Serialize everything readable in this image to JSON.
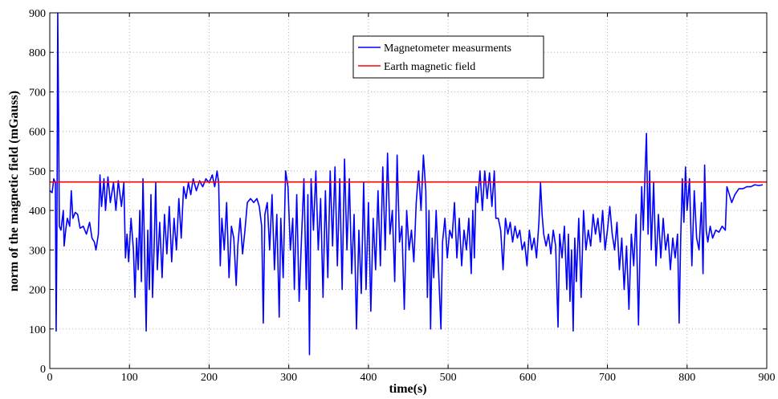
{
  "chart_data": {
    "type": "line",
    "xlabel": "time(s)",
    "ylabel": "norm of the magnetic field (mGauss)",
    "xlim": [
      0,
      900
    ],
    "xticks": [
      0,
      100,
      200,
      300,
      400,
      500,
      600,
      700,
      800,
      900
    ],
    "ylim": [
      0,
      900
    ],
    "yticks": [
      0,
      100,
      200,
      300,
      400,
      500,
      600,
      700,
      800,
      900
    ],
    "grid": true,
    "legend": "upper center",
    "series": [
      {
        "name": "Magnetometer measurments",
        "color": "#0000ff",
        "x": [
          0,
          3,
          5,
          7,
          8,
          9,
          10,
          11,
          12,
          14,
          17,
          18,
          20,
          22,
          25,
          27,
          29,
          32,
          35,
          38,
          42,
          46,
          50,
          53,
          56,
          58,
          61,
          63,
          65,
          68,
          70,
          73,
          76,
          80,
          83,
          86,
          90,
          93,
          95,
          97,
          99,
          102,
          105,
          107,
          109,
          111,
          113,
          115,
          117,
          119,
          121,
          123,
          125,
          127,
          129,
          131,
          133,
          135,
          138,
          141,
          144,
          147,
          150,
          153,
          156,
          159,
          162,
          165,
          168,
          171,
          174,
          177,
          180,
          184,
          188,
          192,
          196,
          200,
          204,
          207,
          210,
          212,
          214,
          216,
          219,
          222,
          225,
          228,
          231,
          234,
          236,
          239,
          242,
          245,
          248,
          252,
          256,
          260,
          263,
          266,
          268,
          270,
          273,
          276,
          279,
          282,
          285,
          288,
          290,
          293,
          296,
          299,
          302,
          305,
          307,
          310,
          313,
          316,
          319,
          322,
          324,
          326,
          328,
          331,
          334,
          337,
          340,
          343,
          346,
          349,
          352,
          355,
          358,
          361,
          364,
          367,
          370,
          373,
          376,
          379,
          382,
          385,
          388,
          391,
          394,
          397,
          400,
          403,
          406,
          409,
          412,
          415,
          418,
          421,
          424,
          427,
          430,
          433,
          436,
          439,
          442,
          445,
          448,
          451,
          454,
          457,
          460,
          463,
          466,
          469,
          472,
          474,
          476,
          478,
          480,
          482,
          485,
          488,
          491,
          493,
          496,
          499,
          502,
          505,
          508,
          511,
          514,
          517,
          520,
          523,
          526,
          529,
          531,
          533,
          535,
          537,
          540,
          543,
          546,
          549,
          552,
          555,
          558,
          560,
          563,
          566,
          569,
          572,
          575,
          578,
          581,
          584,
          587,
          590,
          593,
          596,
          599,
          602,
          605,
          608,
          611,
          614,
          616,
          618,
          620,
          623,
          626,
          629,
          632,
          635,
          638,
          640,
          643,
          646,
          649,
          651,
          653,
          655,
          657,
          659,
          661,
          664,
          667,
          670,
          673,
          676,
          679,
          682,
          685,
          688,
          691,
          694,
          697,
          700,
          703,
          706,
          709,
          712,
          715,
          718,
          721,
          724,
          727,
          730,
          733,
          736,
          739,
          741,
          743,
          745,
          747,
          749,
          751,
          753,
          755,
          758,
          761,
          764,
          767,
          770,
          773,
          776,
          779,
          782,
          785,
          788,
          790,
          792,
          794,
          796,
          798,
          800,
          803,
          806,
          809,
          812,
          815,
          818,
          820,
          822,
          824,
          826,
          829,
          832,
          836,
          840,
          844,
          848,
          850,
          853,
          856,
          860,
          865,
          870,
          875,
          880,
          885,
          890,
          895
        ],
        "values": [
          450,
          445,
          480,
          470,
          95,
          350,
          900,
          650,
          360,
          350,
          400,
          310,
          350,
          380,
          360,
          450,
          380,
          395,
          390,
          355,
          360,
          340,
          370,
          330,
          320,
          300,
          340,
          490,
          410,
          480,
          400,
          485,
          420,
          470,
          400,
          475,
          410,
          470,
          280,
          340,
          270,
          380,
          300,
          180,
          330,
          250,
          400,
          220,
          480,
          300,
          95,
          350,
          200,
          440,
          180,
          310,
          470,
          250,
          370,
          230,
          390,
          290,
          410,
          270,
          380,
          300,
          430,
          330,
          460,
          430,
          470,
          440,
          480,
          450,
          475,
          460,
          480,
          470,
          490,
          460,
          500,
          470,
          260,
          380,
          300,
          420,
          230,
          360,
          330,
          210,
          310,
          380,
          290,
          350,
          420,
          430,
          420,
          430,
          410,
          360,
          115,
          390,
          420,
          300,
          440,
          250,
          390,
          130,
          380,
          230,
          500,
          460,
          300,
          380,
          200,
          440,
          170,
          330,
          480,
          200,
          440,
          35,
          480,
          350,
          500,
          300,
          430,
          180,
          450,
          230,
          500,
          310,
          510,
          260,
          480,
          200,
          530,
          300,
          480,
          240,
          390,
          100,
          350,
          190,
          470,
          200,
          420,
          145,
          380,
          250,
          450,
          260,
          510,
          300,
          545,
          340,
          400,
          220,
          540,
          320,
          360,
          150,
          400,
          300,
          350,
          270,
          420,
          500,
          400,
          540,
          450,
          180,
          400,
          100,
          330,
          230,
          400,
          250,
          100,
          320,
          380,
          280,
          350,
          330,
          420,
          280,
          380,
          260,
          350,
          300,
          380,
          240,
          400,
          280,
          460,
          420,
          500,
          400,
          500,
          430,
          495,
          410,
          500,
          380,
          380,
          350,
          250,
          380,
          340,
          370,
          320,
          360,
          330,
          350,
          300,
          320,
          260,
          350,
          300,
          330,
          280,
          370,
          470,
          390,
          340,
          310,
          340,
          290,
          350,
          310,
          105,
          340,
          280,
          360,
          200,
          340,
          170,
          300,
          95,
          330,
          220,
          380,
          180,
          400,
          300,
          350,
          310,
          390,
          340,
          380,
          320,
          400,
          300,
          350,
          410,
          340,
          300,
          370,
          250,
          330,
          200,
          310,
          150,
          340,
          260,
          390,
          110,
          310,
          460,
          350,
          480,
          595,
          340,
          500,
          300,
          470,
          260,
          390,
          280,
          380,
          300,
          340,
          250,
          330,
          280,
          340,
          115,
          330,
          480,
          370,
          510,
          400,
          480,
          260,
          450,
          330,
          300,
          420,
          240,
          515,
          350,
          320,
          360,
          330,
          350,
          345,
          360,
          350,
          460,
          440,
          420,
          440,
          455,
          455,
          460,
          460,
          465,
          463,
          465
        ]
      },
      {
        "name": "Earth magnetic field",
        "color": "#ff0000",
        "x": [
          0,
          900
        ],
        "values": [
          472,
          472
        ]
      }
    ]
  }
}
